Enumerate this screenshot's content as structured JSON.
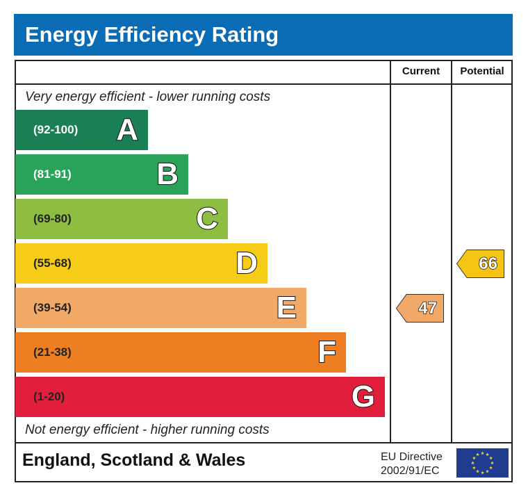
{
  "title": "Energy Efficiency Rating",
  "columns": {
    "current": "Current",
    "potential": "Potential"
  },
  "top_note": "Very energy efficient - lower running costs",
  "bottom_note": "Not energy efficient - higher running costs",
  "footer": {
    "country": "England, Scotland & Wales",
    "directive_line1": "EU Directive",
    "directive_line2": "2002/91/EC",
    "flag_icon": "eu-flag-icon"
  },
  "chart_data": {
    "type": "bar",
    "bands": [
      {
        "letter": "A",
        "range": "(92-100)",
        "color": "#1b7f55",
        "text_color": "#ffffff"
      },
      {
        "letter": "B",
        "range": "(81-91)",
        "color": "#2aa35a",
        "text_color": "#ffffff"
      },
      {
        "letter": "C",
        "range": "(69-80)",
        "color": "#8dbd41",
        "text_color": "#222222"
      },
      {
        "letter": "D",
        "range": "(55-68)",
        "color": "#f6cc16",
        "text_color": "#222222"
      },
      {
        "letter": "E",
        "range": "(39-54)",
        "color": "#f2a867",
        "text_color": "#222222"
      },
      {
        "letter": "F",
        "range": "(21-38)",
        "color": "#ee7e22",
        "text_color": "#222222"
      },
      {
        "letter": "G",
        "range": "(1-20)",
        "color": "#e11e3c",
        "text_color": "#222222"
      }
    ],
    "current": {
      "value": "47",
      "band": "E",
      "color": "#f2a867"
    },
    "potential": {
      "value": "66",
      "band": "D",
      "color": "#f6c514"
    }
  }
}
